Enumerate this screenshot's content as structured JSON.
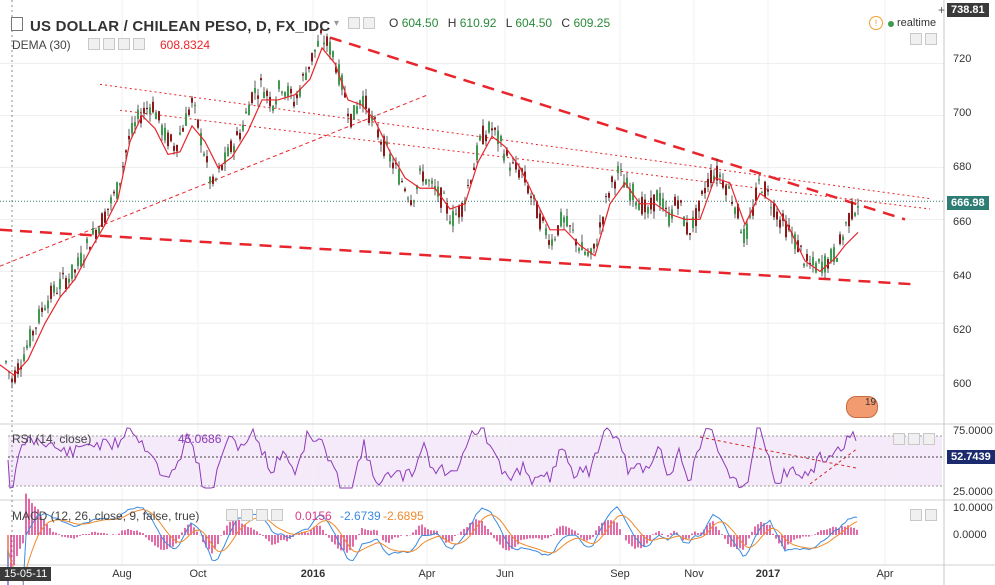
{
  "header": {
    "title": "US DOLLAR / CHILEAN PESO, D, FX_IDC",
    "ohlc": [
      {
        "k": "O",
        "v": "604.50"
      },
      {
        "k": "H",
        "v": "610.92"
      },
      {
        "k": "L",
        "v": "604.50"
      },
      {
        "k": "C",
        "v": "609.25"
      }
    ],
    "realtime_label": "realtime"
  },
  "dema": {
    "label": "DEMA (30)",
    "value": "608.8324"
  },
  "rsi": {
    "label": "RSI (14, close)",
    "value": "45.0686",
    "current": "52.7439",
    "ticks": [
      "75.0000",
      "25.0000"
    ]
  },
  "macd": {
    "label": "MACD (12, 26, close, 9, false, true)",
    "values": [
      "0.0156",
      "-2.6739",
      "-2.6895"
    ],
    "ticks": [
      "10.0000",
      "0.0000"
    ]
  },
  "badge": {
    "label": "19"
  },
  "colors": {
    "up": "#3d9a4e",
    "down": "#8b1a1a",
    "dema": "#e8252c",
    "trend": "#e8252c",
    "rsi": "#8e3ab8",
    "macd": "#3b8be0",
    "signal": "#f08a2c",
    "hist": "#d83b8a",
    "last": "#2e7d74",
    "red": "#d12b2b"
  },
  "chart_data": [
    {
      "type": "candlestick",
      "title": "US DOLLAR / CHILEAN PESO, D, FX_IDC",
      "y_ticks": [
        600,
        620,
        640,
        660,
        680,
        700,
        720
      ],
      "ylim": [
        582,
        736
      ],
      "x_ticks": [
        "15-05-11",
        "Aug",
        "Oct",
        "2016",
        "Apr",
        "Jun",
        "Sep",
        "Nov",
        "2017",
        "Apr"
      ],
      "last_price": "666.98",
      "top_price": "738.81",
      "grid": true,
      "series": [
        {
          "name": "price",
          "points": [
            [
              0,
              612
            ],
            [
              12,
              598
            ],
            [
              28,
              612
            ],
            [
              45,
              628
            ],
            [
              60,
              635
            ],
            [
              75,
              640
            ],
            [
              90,
              652
            ],
            [
              105,
              662
            ],
            [
              118,
              672
            ],
            [
              128,
              690
            ],
            [
              140,
              700
            ],
            [
              152,
              705
            ],
            [
              165,
              692
            ],
            [
              175,
              688
            ],
            [
              185,
              698
            ],
            [
              192,
              705
            ],
            [
              202,
              690
            ],
            [
              212,
              672
            ],
            [
              222,
              680
            ],
            [
              232,
              688
            ],
            [
              242,
              695
            ],
            [
              252,
              708
            ],
            [
              262,
              712
            ],
            [
              272,
              705
            ],
            [
              282,
              712
            ],
            [
              295,
              705
            ],
            [
              305,
              716
            ],
            [
              315,
              725
            ],
            [
              322,
              730
            ],
            [
              332,
              725
            ],
            [
              342,
              712
            ],
            [
              352,
              698
            ],
            [
              362,
              708
            ],
            [
              372,
              698
            ],
            [
              382,
              690
            ],
            [
              392,
              682
            ],
            [
              402,
              675
            ],
            [
              412,
              668
            ],
            [
              422,
              678
            ],
            [
              432,
              672
            ],
            [
              442,
              668
            ],
            [
              452,
              660
            ],
            [
              462,
              665
            ],
            [
              472,
              678
            ],
            [
              482,
              692
            ],
            [
              492,
              695
            ],
            [
              502,
              688
            ],
            [
              512,
              680
            ],
            [
              522,
              678
            ],
            [
              532,
              668
            ],
            [
              542,
              658
            ],
            [
              552,
              652
            ],
            [
              562,
              660
            ],
            [
              572,
              655
            ],
            [
              582,
              648
            ],
            [
              592,
              645
            ],
            [
              602,
              660
            ],
            [
              610,
              672
            ],
            [
              618,
              678
            ],
            [
              628,
              672
            ],
            [
              638,
              668
            ],
            [
              648,
              662
            ],
            [
              658,
              670
            ],
            [
              668,
              660
            ],
            [
              678,
              668
            ],
            [
              688,
              655
            ],
            [
              698,
              662
            ],
            [
              705,
              672
            ],
            [
              712,
              678
            ],
            [
              720,
              677
            ],
            [
              728,
              672
            ],
            [
              736,
              665
            ],
            [
              745,
              652
            ],
            [
              752,
              662
            ],
            [
              760,
              675
            ],
            [
              770,
              668
            ],
            [
              780,
              660
            ],
            [
              790,
              655
            ],
            [
              798,
              650
            ],
            [
              808,
              642
            ],
            [
              818,
              642
            ],
            [
              828,
              644
            ],
            [
              838,
              648
            ],
            [
              848,
              660
            ],
            [
              858,
              667
            ]
          ]
        },
        {
          "name": "DEMA (30)",
          "points": [
            [
              0,
              604
            ],
            [
              14,
              600
            ],
            [
              28,
              606
            ],
            [
              45,
              620
            ],
            [
              60,
              630
            ],
            [
              75,
              637
            ],
            [
              90,
              648
            ],
            [
              105,
              658
            ],
            [
              118,
              668
            ],
            [
              130,
              690
            ],
            [
              142,
              700
            ],
            [
              155,
              695
            ],
            [
              168,
              685
            ],
            [
              180,
              686
            ],
            [
              192,
              696
            ],
            [
              205,
              690
            ],
            [
              218,
              680
            ],
            [
              232,
              684
            ],
            [
              248,
              694
            ],
            [
              262,
              706
            ],
            [
              278,
              706
            ],
            [
              295,
              708
            ],
            [
              310,
              714
            ],
            [
              322,
              726
            ],
            [
              335,
              720
            ],
            [
              348,
              706
            ],
            [
              362,
              704
            ],
            [
              375,
              698
            ],
            [
              390,
              686
            ],
            [
              405,
              676
            ],
            [
              420,
              672
            ],
            [
              435,
              672
            ],
            [
              450,
              664
            ],
            [
              465,
              666
            ],
            [
              478,
              682
            ],
            [
              492,
              692
            ],
            [
              505,
              688
            ],
            [
              520,
              680
            ],
            [
              535,
              668
            ],
            [
              550,
              656
            ],
            [
              565,
              656
            ],
            [
              580,
              650
            ],
            [
              595,
              646
            ],
            [
              610,
              666
            ],
            [
              625,
              674
            ],
            [
              640,
              666
            ],
            [
              655,
              666
            ],
            [
              670,
              662
            ],
            [
              685,
              660
            ],
            [
              700,
              660
            ],
            [
              715,
              676
            ],
            [
              730,
              674
            ],
            [
              745,
              658
            ],
            [
              760,
              670
            ],
            [
              775,
              666
            ],
            [
              790,
              656
            ],
            [
              805,
              644
            ],
            [
              820,
              640
            ],
            [
              835,
              645
            ],
            [
              845,
              650
            ],
            [
              858,
              655
            ]
          ]
        }
      ],
      "lines": [
        {
          "name": "trend-upper",
          "points": [
            [
              330,
              730
            ],
            [
              905,
              660
            ]
          ]
        },
        {
          "name": "trend-lower",
          "points": [
            [
              0,
              656
            ],
            [
              915,
              635
            ]
          ]
        },
        {
          "name": "trend-rising",
          "points": [
            [
              0,
              642
            ],
            [
              428,
              708
            ]
          ]
        },
        {
          "name": "trend-dotted-1",
          "points": [
            [
              100,
              712
            ],
            [
              930,
              668
            ]
          ]
        },
        {
          "name": "trend-dotted-2",
          "points": [
            [
              120,
              702
            ],
            [
              930,
              664
            ]
          ]
        }
      ]
    },
    {
      "type": "line",
      "name": "RSI (14, close)",
      "ylim": [
        0,
        100
      ],
      "y_ticks": [
        25,
        75
      ],
      "current": 52.7439
    },
    {
      "type": "bar",
      "name": "MACD (12, 26, close, 9, false, true)",
      "y_ticks": [
        0,
        10
      ]
    }
  ]
}
